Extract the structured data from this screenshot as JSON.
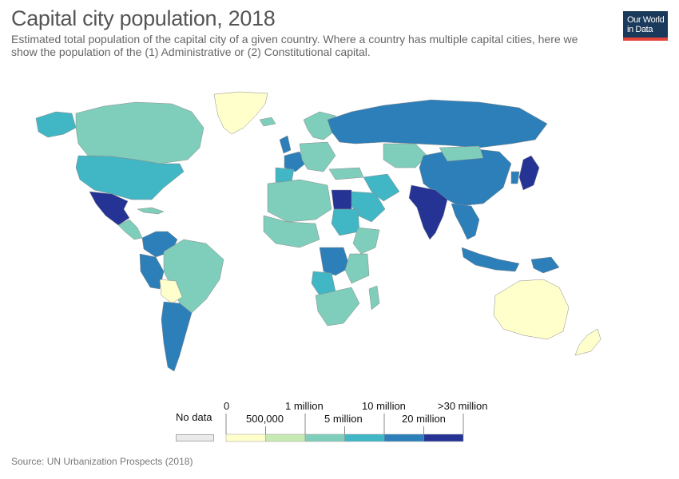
{
  "header": {
    "title": "Capital city population, 2018",
    "subtitle": "Estimated total population of the capital city of a given country. Where a country has multiple capital cities, here we show the population of the (1) Administrative or (2) Constitutional capital."
  },
  "logo": {
    "line1": "Our World",
    "line2": "in Data"
  },
  "legend": {
    "no_data_label": "No data",
    "no_data_color": "#eaeaea",
    "upper_ticks": [
      "0",
      "1 million",
      "10 million",
      ">30 million"
    ],
    "lower_ticks": [
      "500,000",
      "5 million",
      "20 million"
    ],
    "bins": [
      {
        "color": "#ffffcc"
      },
      {
        "color": "#c7e9b4"
      },
      {
        "color": "#7fcdbb"
      },
      {
        "color": "#41b6c4"
      },
      {
        "color": "#2c7fb8"
      },
      {
        "color": "#253494"
      }
    ]
  },
  "source": "Source: UN Urbanization Prospects (2018)"
}
